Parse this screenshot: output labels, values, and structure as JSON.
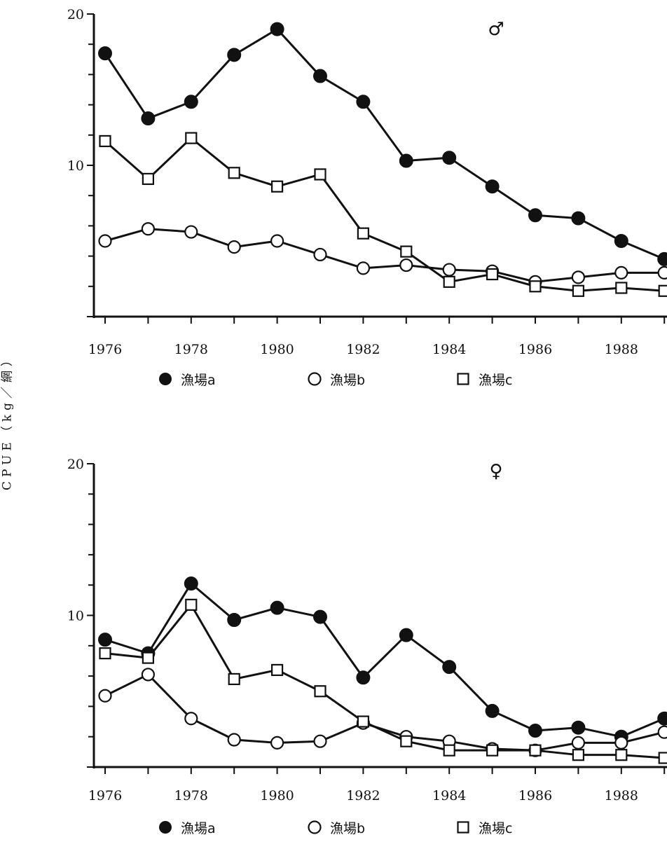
{
  "y_axis_label": "CPUE（kg／網）",
  "chart_data": [
    {
      "type": "line",
      "symbol": "♂",
      "x": [
        1976,
        1977,
        1978,
        1979,
        1980,
        1981,
        1982,
        1983,
        1984,
        1985,
        1986,
        1987,
        1988,
        1989
      ],
      "x_tick_labels": [
        "1976",
        "1978",
        "1980",
        "1982",
        "1984",
        "1986",
        "1988"
      ],
      "y_tick_labels": [
        "20",
        "10"
      ],
      "ylim": [
        0,
        20
      ],
      "series": [
        {
          "name": "漁場a",
          "marker": "filled-circle",
          "values": [
            17.4,
            13.1,
            14.2,
            17.3,
            19.0,
            15.9,
            14.2,
            10.3,
            10.5,
            8.6,
            6.7,
            6.5,
            5.0,
            3.8
          ]
        },
        {
          "name": "漁場b",
          "marker": "open-circle",
          "values": [
            5.0,
            5.8,
            5.6,
            4.6,
            5.0,
            4.1,
            3.2,
            3.4,
            3.1,
            3.0,
            2.3,
            2.6,
            2.9,
            2.9
          ]
        },
        {
          "name": "漁場c",
          "marker": "open-square",
          "values": [
            11.6,
            9.1,
            11.8,
            9.5,
            8.6,
            9.4,
            5.5,
            4.3,
            2.3,
            2.8,
            2.0,
            1.7,
            1.9,
            1.7
          ]
        }
      ]
    },
    {
      "type": "line",
      "symbol": "♀",
      "x": [
        1976,
        1977,
        1978,
        1979,
        1980,
        1981,
        1982,
        1983,
        1984,
        1985,
        1986,
        1987,
        1988,
        1989
      ],
      "x_tick_labels": [
        "1976",
        "1978",
        "1980",
        "1982",
        "1984",
        "1986",
        "1988"
      ],
      "y_tick_labels": [
        "20",
        "10"
      ],
      "ylim": [
        0,
        20
      ],
      "series": [
        {
          "name": "漁場a",
          "marker": "filled-circle",
          "values": [
            8.4,
            7.5,
            12.1,
            9.7,
            10.5,
            9.9,
            5.9,
            8.7,
            6.6,
            3.7,
            2.4,
            2.6,
            2.0,
            3.2
          ]
        },
        {
          "name": "漁場b",
          "marker": "open-circle",
          "values": [
            4.7,
            6.1,
            3.2,
            1.8,
            1.6,
            1.7,
            2.9,
            2.0,
            1.7,
            1.2,
            1.1,
            1.6,
            1.6,
            2.3
          ]
        },
        {
          "name": "漁場c",
          "marker": "open-square",
          "values": [
            7.5,
            7.2,
            10.7,
            5.8,
            6.4,
            5.0,
            3.0,
            1.7,
            1.1,
            1.1,
            1.1,
            0.8,
            0.8,
            0.6
          ]
        }
      ]
    }
  ]
}
